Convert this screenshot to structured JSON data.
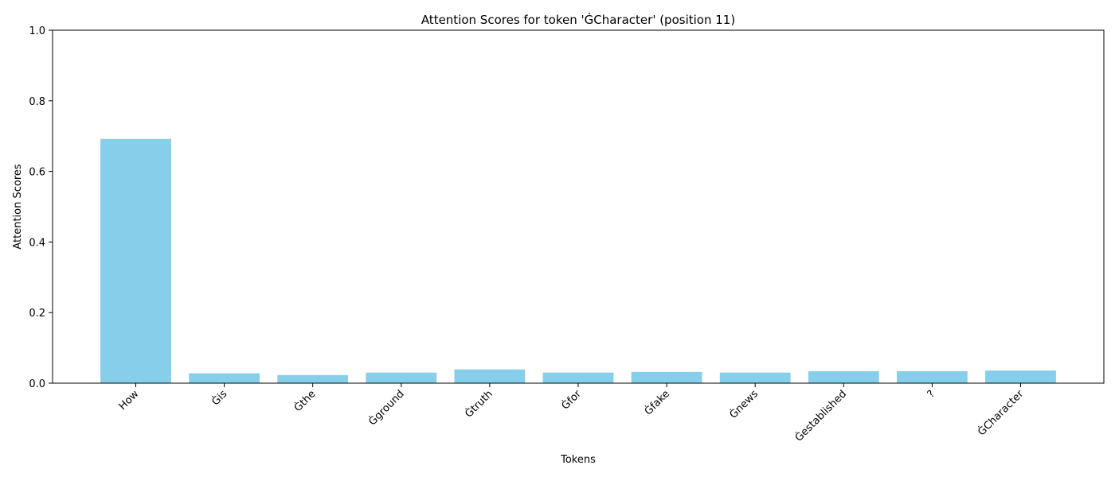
{
  "chart_data": {
    "type": "bar",
    "title": "Attention Scores for token 'ĠCharacter' (position 11)",
    "xlabel": "Tokens",
    "ylabel": "Attention Scores",
    "categories": [
      "How",
      "Ġis",
      "Ġthe",
      "Ġground",
      "Ġtruth",
      "Ġfor",
      "Ġfake",
      "Ġnews",
      "Ġestablished",
      "?",
      "ĠCharacter"
    ],
    "values": [
      0.692,
      0.028,
      0.023,
      0.03,
      0.039,
      0.03,
      0.032,
      0.03,
      0.034,
      0.034,
      0.036
    ],
    "ylim": [
      0,
      1.0
    ],
    "yticks": [
      0.0,
      0.2,
      0.4,
      0.6,
      0.8,
      1.0
    ],
    "ytick_labels": [
      "0.0",
      "0.2",
      "0.4",
      "0.6",
      "0.8",
      "1.0"
    ],
    "bar_color": "#87ceeb",
    "grid": false,
    "legend": "none"
  }
}
